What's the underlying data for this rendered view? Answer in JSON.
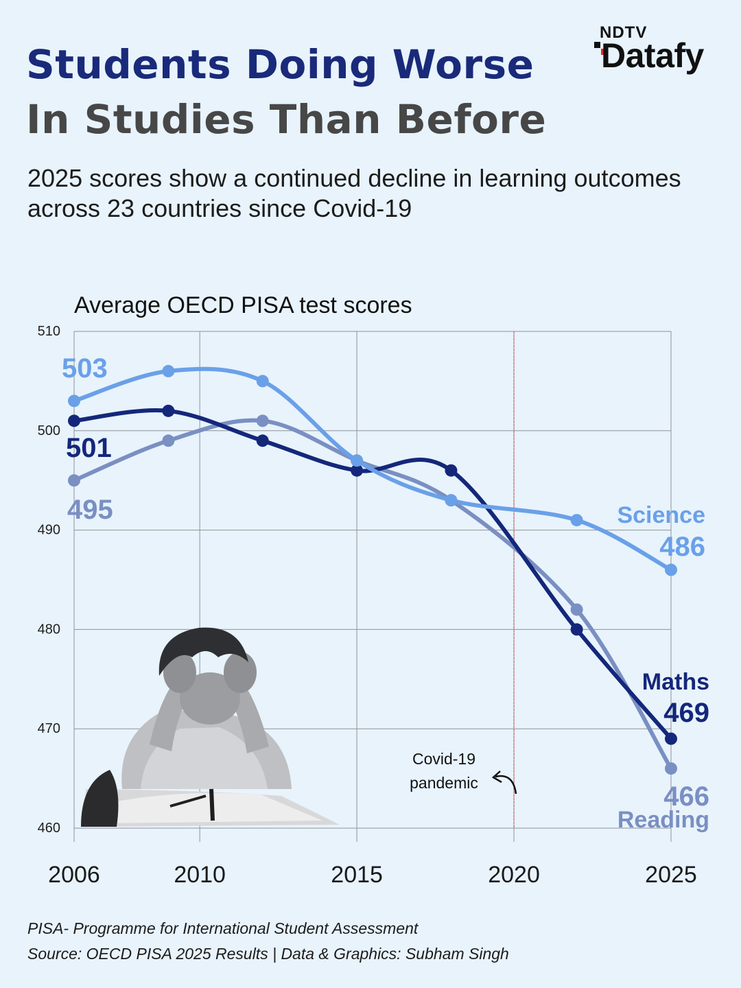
{
  "header": {
    "title_line1": "Students Doing Worse",
    "title_line2": "In Studies Than Before",
    "subtitle": "2025 scores show a continued decline in learning outcomes across 23 countries since Covid-19"
  },
  "brand": {
    "top": "NDTV",
    "main": "Datafy",
    "accent": "#e3262b"
  },
  "chart_data": {
    "type": "line",
    "title": "Average OECD PISA test scores",
    "xlabel": "",
    "ylabel": "",
    "x_ticks": [
      2006,
      2010,
      2015,
      2020,
      2025
    ],
    "y_ticks": [
      460,
      470,
      480,
      490,
      500,
      510
    ],
    "xlim": [
      2006,
      2025
    ],
    "ylim": [
      460,
      510
    ],
    "grid": true,
    "series": [
      {
        "name": "Science",
        "color": "#6aa0e8",
        "x": [
          2006,
          2009,
          2012,
          2015,
          2018,
          2022,
          2025
        ],
        "y": [
          503,
          506,
          505,
          497,
          493,
          491,
          486
        ],
        "start_label": "503",
        "end_label": "486"
      },
      {
        "name": "Maths",
        "color": "#14277a",
        "x": [
          2006,
          2009,
          2012,
          2015,
          2018,
          2022,
          2025
        ],
        "y": [
          501,
          502,
          499,
          496,
          496,
          480,
          469
        ],
        "start_label": "501",
        "end_label": "469"
      },
      {
        "name": "Reading",
        "color": "#7a8fc2",
        "x": [
          2006,
          2009,
          2012,
          2015,
          2018,
          2022,
          2025
        ],
        "y": [
          495,
          499,
          501,
          497,
          493,
          482,
          466
        ],
        "start_label": "495",
        "end_label": "466"
      }
    ],
    "annotation": {
      "x": 2020,
      "line1": "Covid-19",
      "line2": "pandemic",
      "line_color": "#e05a5a"
    }
  },
  "footer": {
    "note": "PISA- Programme for International Student Assessment",
    "source": "Source: OECD PISA 2025 Results | Data & Graphics: Subham Singh"
  }
}
